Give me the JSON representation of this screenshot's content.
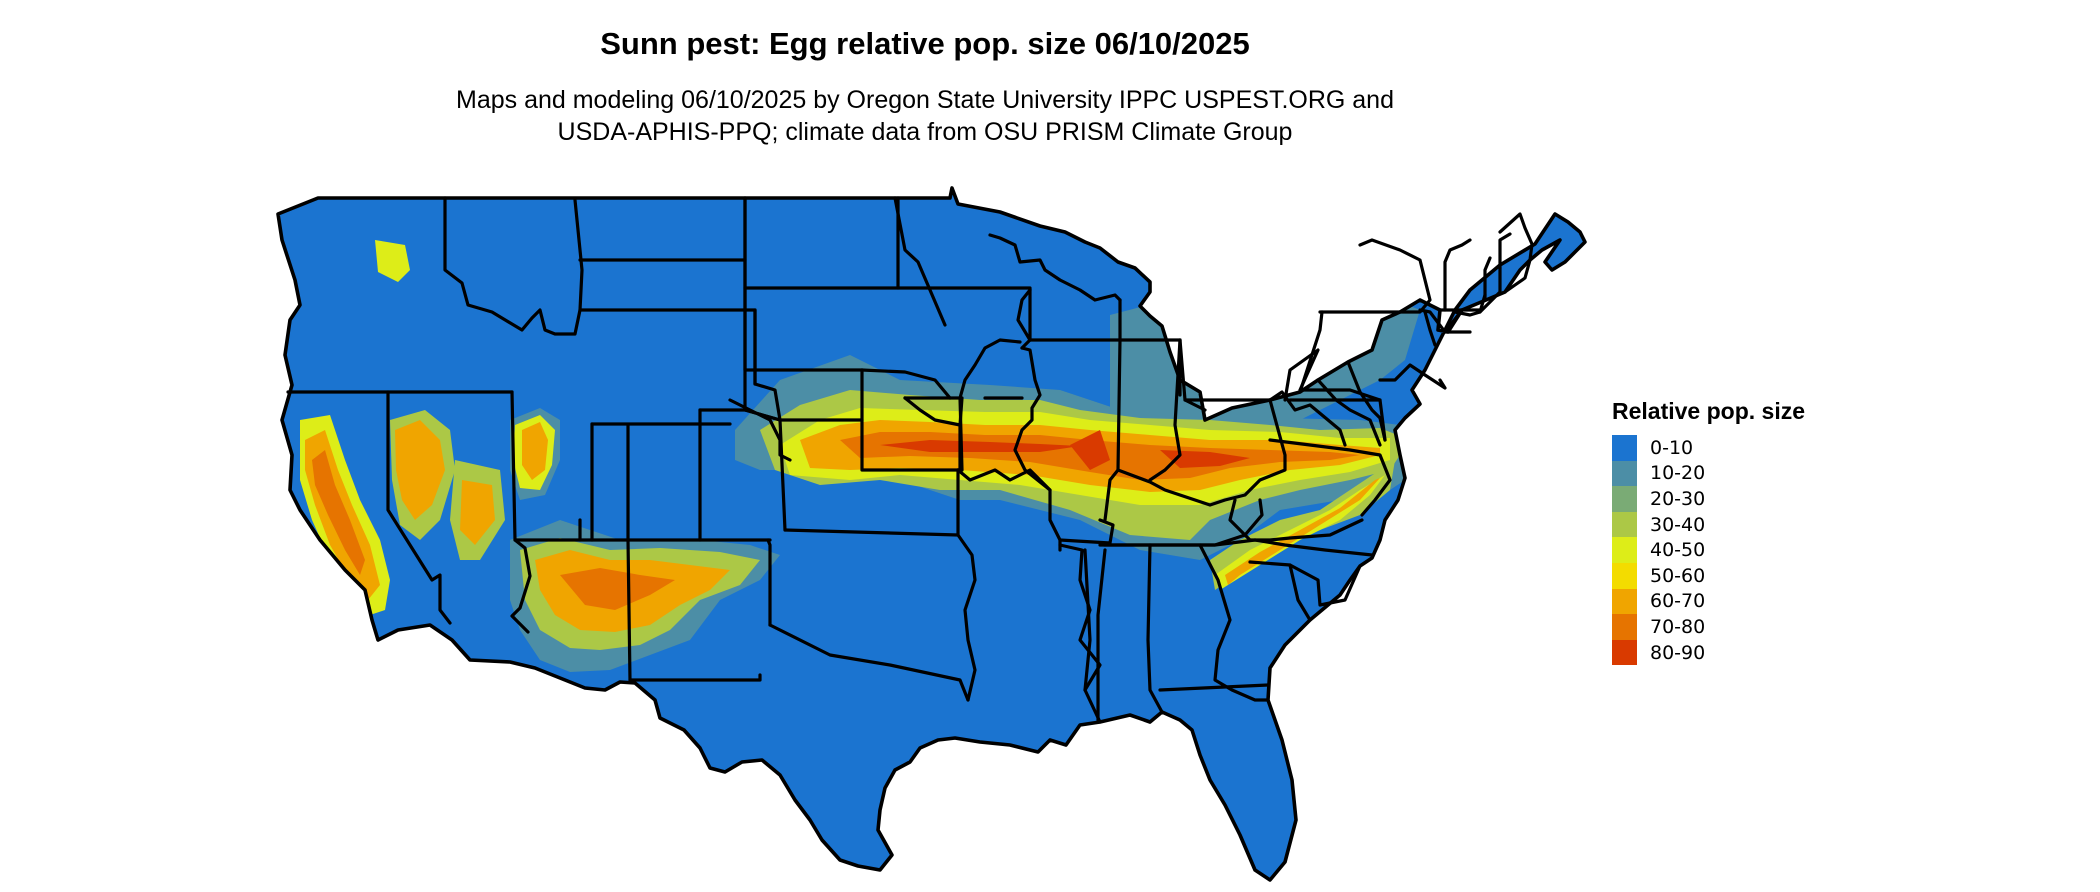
{
  "map": {
    "title": "Sunn pest: Egg relative pop. size 06/10/2025",
    "subtitle_line1": "Maps and modeling 06/10/2025 by Oregon State University IPPC USPEST.ORG and",
    "subtitle_line2": "USDA-APHIS-PPQ; climate data from OSU PRISM Climate Group",
    "region": "contiguous United States",
    "base_color": "#1b74d0",
    "border_color": "#000000"
  },
  "legend": {
    "title": "Relative pop. size",
    "items": [
      {
        "label": "0-10",
        "color": "#1b74d0"
      },
      {
        "label": "10-20",
        "color": "#4c8ea6"
      },
      {
        "label": "20-30",
        "color": "#7aab75"
      },
      {
        "label": "30-40",
        "color": "#acc846"
      },
      {
        "label": "40-50",
        "color": "#dded18"
      },
      {
        "label": "50-60",
        "color": "#f3dc00"
      },
      {
        "label": "60-70",
        "color": "#f0a500"
      },
      {
        "label": "70-80",
        "color": "#e67400"
      },
      {
        "label": "80-90",
        "color": "#d93a00"
      }
    ]
  }
}
